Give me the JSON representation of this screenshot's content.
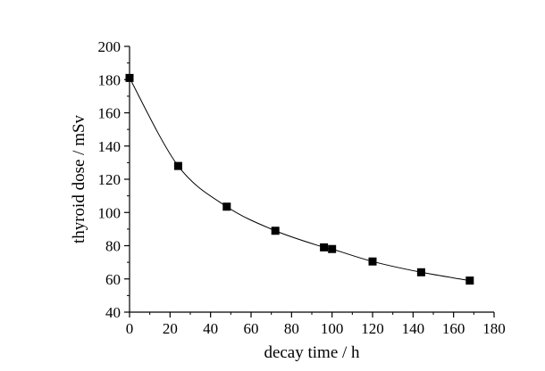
{
  "chart_data": {
    "type": "line",
    "title": "",
    "xlabel": "decay time / h",
    "ylabel": "thyroid dose / mSv",
    "xlim": [
      0,
      180
    ],
    "ylim": [
      40,
      200
    ],
    "xticks": [
      0,
      20,
      40,
      60,
      80,
      100,
      120,
      140,
      160,
      180
    ],
    "yticks": [
      40,
      60,
      80,
      100,
      120,
      140,
      160,
      180,
      200
    ],
    "grid": false,
    "legend": "none",
    "marker": "square",
    "series": [
      {
        "x": [
          0,
          24,
          48,
          72,
          96,
          100,
          120,
          144,
          168
        ],
        "y": [
          181,
          128,
          103.5,
          89,
          79,
          78,
          70.5,
          64,
          59
        ]
      }
    ],
    "colors": {
      "line": "#000000",
      "marker": "#000000",
      "axis": "#000000"
    }
  }
}
